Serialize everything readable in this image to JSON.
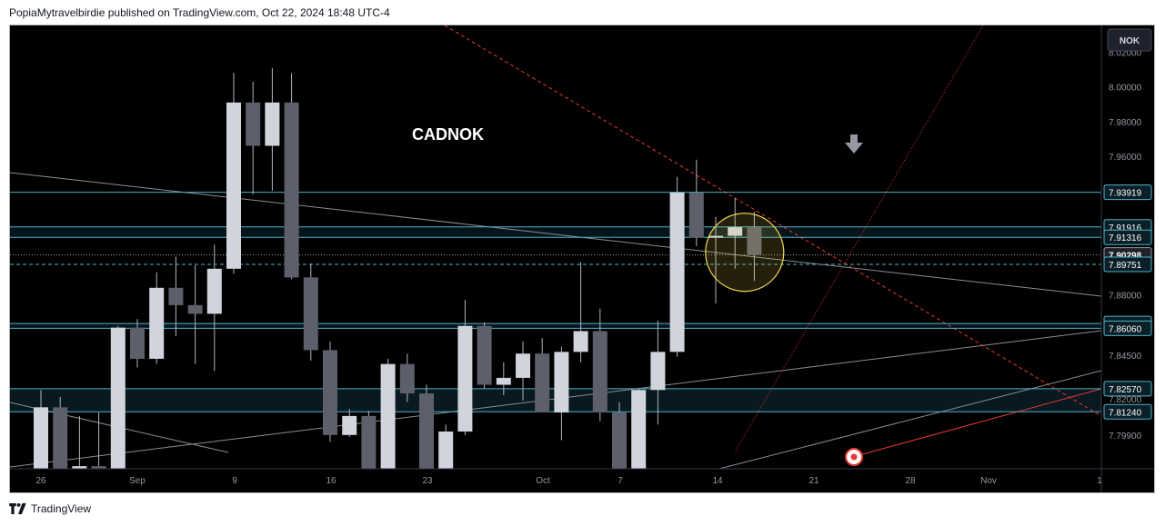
{
  "header": {
    "publisher_line": "PopiaMytravelbirdie published on TradingView.com, Oct 22, 2024 18:48 UTC-4"
  },
  "footer": {
    "brand": "TradingView",
    "logo_icon": "tradingview-logo-icon"
  },
  "colors": {
    "background": "#000000",
    "bull_candle": "#d1d4dc",
    "bear_candle": "#5d606b",
    "wick": "#b2b5be",
    "level_line": "#4fb3c8",
    "current_price_line": "#9598a1",
    "red_trendline": "#e53935",
    "gray_trendline": "#8a8d94",
    "circle": "#f2d94e"
  },
  "chart_data": {
    "type": "candlestick",
    "symbol_label": "CADNOK",
    "currency_badge": "NOK",
    "ylim": [
      7.7795,
      8.0355
    ],
    "y_ticks": [
      "8.02000",
      "8.00000",
      "7.98000",
      "7.96000",
      "7.88000",
      "7.84500",
      "7.82000",
      "7.79900"
    ],
    "x_ticks": [
      "26",
      "Sep",
      "9",
      "16",
      "23",
      "Oct",
      "7",
      "14",
      "21",
      "28",
      "Nov",
      "1"
    ],
    "price_levels": [
      {
        "value": 7.93919,
        "label": "7.93919",
        "style": "solid"
      },
      {
        "value": 7.91916,
        "label": "7.91916",
        "style": "solid"
      },
      {
        "value": 7.91316,
        "label": "7.91316",
        "style": "solid"
      },
      {
        "value": 7.90298,
        "label": "7.90298",
        "style": "current"
      },
      {
        "value": 7.89751,
        "label": "7.89751",
        "style": "dashed"
      },
      {
        "value": 7.8634,
        "label": "7.86340",
        "style": "solid"
      },
      {
        "value": 7.8606,
        "label": "7.86060",
        "style": "solid"
      },
      {
        "value": 7.8257,
        "label": "7.82570",
        "style": "solid"
      },
      {
        "value": 7.8124,
        "label": "7.81240",
        "style": "solid"
      }
    ],
    "candles": [
      {
        "o": 7.7795,
        "h": 7.825,
        "l": 7.7795,
        "c": 7.815
      },
      {
        "o": 7.815,
        "h": 7.821,
        "l": 7.7795,
        "c": 7.7795
      },
      {
        "o": 7.7795,
        "h": 7.81,
        "l": 7.7795,
        "c": 7.781
      },
      {
        "o": 7.781,
        "h": 7.812,
        "l": 7.7795,
        "c": 7.7795
      },
      {
        "o": 7.7795,
        "h": 7.862,
        "l": 7.7795,
        "c": 7.861
      },
      {
        "o": 7.861,
        "h": 7.866,
        "l": 7.838,
        "c": 7.843
      },
      {
        "o": 7.843,
        "h": 7.893,
        "l": 7.84,
        "c": 7.884
      },
      {
        "o": 7.884,
        "h": 7.902,
        "l": 7.856,
        "c": 7.874
      },
      {
        "o": 7.874,
        "h": 7.897,
        "l": 7.84,
        "c": 7.869
      },
      {
        "o": 7.869,
        "h": 7.909,
        "l": 7.836,
        "c": 7.895
      },
      {
        "o": 7.895,
        "h": 8.008,
        "l": 7.892,
        "c": 7.991
      },
      {
        "o": 7.991,
        "h": 8.003,
        "l": 7.938,
        "c": 7.966
      },
      {
        "o": 7.966,
        "h": 8.011,
        "l": 7.94,
        "c": 7.991
      },
      {
        "o": 7.991,
        "h": 8.008,
        "l": 7.889,
        "c": 7.89
      },
      {
        "o": 7.89,
        "h": 7.898,
        "l": 7.842,
        "c": 7.848
      },
      {
        "o": 7.848,
        "h": 7.853,
        "l": 7.795,
        "c": 7.799
      },
      {
        "o": 7.799,
        "h": 7.814,
        "l": 7.798,
        "c": 7.81
      },
      {
        "o": 7.81,
        "h": 7.813,
        "l": 7.7795,
        "c": 7.7795
      },
      {
        "o": 7.7795,
        "h": 7.843,
        "l": 7.7795,
        "c": 7.84
      },
      {
        "o": 7.84,
        "h": 7.846,
        "l": 7.818,
        "c": 7.823
      },
      {
        "o": 7.823,
        "h": 7.828,
        "l": 7.7795,
        "c": 7.7795
      },
      {
        "o": 7.7795,
        "h": 7.805,
        "l": 7.7795,
        "c": 7.801
      },
      {
        "o": 7.801,
        "h": 7.877,
        "l": 7.799,
        "c": 7.862
      },
      {
        "o": 7.862,
        "h": 7.864,
        "l": 7.826,
        "c": 7.828
      },
      {
        "o": 7.828,
        "h": 7.841,
        "l": 7.822,
        "c": 7.832
      },
      {
        "o": 7.832,
        "h": 7.853,
        "l": 7.819,
        "c": 7.846
      },
      {
        "o": 7.846,
        "h": 7.855,
        "l": 7.812,
        "c": 7.812
      },
      {
        "o": 7.812,
        "h": 7.85,
        "l": 7.796,
        "c": 7.847
      },
      {
        "o": 7.847,
        "h": 7.899,
        "l": 7.841,
        "c": 7.859
      },
      {
        "o": 7.859,
        "h": 7.872,
        "l": 7.807,
        "c": 7.812
      },
      {
        "o": 7.812,
        "h": 7.818,
        "l": 7.7795,
        "c": 7.7795
      },
      {
        "o": 7.7795,
        "h": 7.826,
        "l": 7.7795,
        "c": 7.825
      },
      {
        "o": 7.825,
        "h": 7.865,
        "l": 7.805,
        "c": 7.847
      },
      {
        "o": 7.847,
        "h": 7.948,
        "l": 7.844,
        "c": 7.939
      },
      {
        "o": 7.939,
        "h": 7.958,
        "l": 7.908,
        "c": 7.913
      },
      {
        "o": 7.913,
        "h": 7.925,
        "l": 7.875,
        "c": 7.914
      },
      {
        "o": 7.914,
        "h": 7.936,
        "l": 7.895,
        "c": 7.919
      },
      {
        "o": 7.919,
        "h": 7.928,
        "l": 7.888,
        "c": 7.903
      }
    ]
  }
}
